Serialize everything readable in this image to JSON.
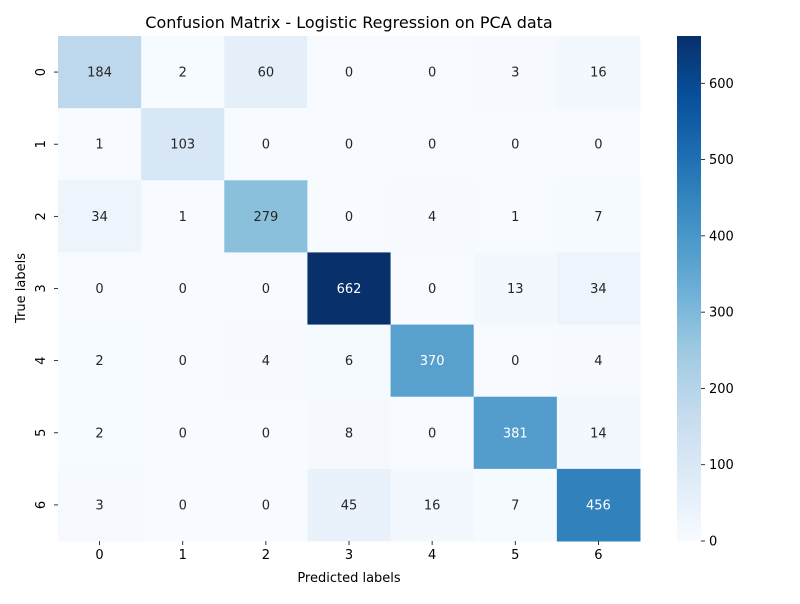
{
  "chart_data": {
    "type": "heatmap",
    "title": "Confusion Matrix - Logistic Regression on PCA data",
    "xlabel": "Predicted labels",
    "ylabel": "True labels",
    "x_categories": [
      "0",
      "1",
      "2",
      "3",
      "4",
      "5",
      "6"
    ],
    "y_categories": [
      "0",
      "1",
      "2",
      "3",
      "4",
      "5",
      "6"
    ],
    "matrix": [
      [
        184,
        2,
        60,
        0,
        0,
        3,
        16
      ],
      [
        1,
        103,
        0,
        0,
        0,
        0,
        0
      ],
      [
        34,
        1,
        279,
        0,
        4,
        1,
        7
      ],
      [
        0,
        0,
        0,
        662,
        0,
        13,
        34
      ],
      [
        2,
        0,
        4,
        6,
        370,
        0,
        4
      ],
      [
        2,
        0,
        0,
        8,
        0,
        381,
        14
      ],
      [
        3,
        0,
        0,
        45,
        16,
        7,
        456
      ]
    ],
    "colormap": "Blues",
    "colorbar": {
      "range": [
        0,
        662
      ],
      "ticks": [
        0,
        100,
        200,
        300,
        400,
        500,
        600
      ]
    },
    "grid": false,
    "legend": "colorbar-right"
  }
}
